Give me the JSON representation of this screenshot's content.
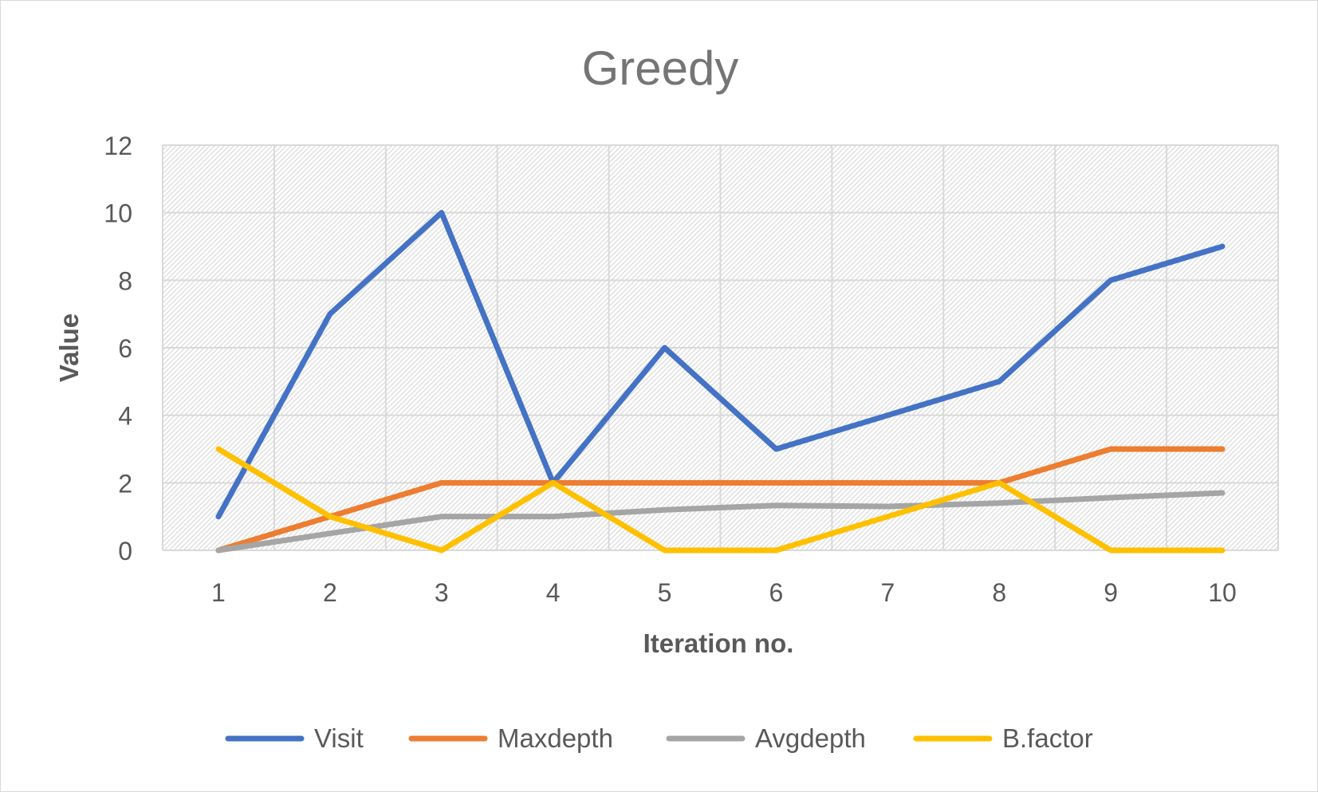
{
  "chart_data": {
    "type": "line",
    "title": "Greedy",
    "xlabel": "Iteration no.",
    "ylabel": "Value",
    "categories": [
      "1",
      "2",
      "3",
      "4",
      "5",
      "6",
      "7",
      "8",
      "9",
      "10"
    ],
    "ylim": [
      0,
      12
    ],
    "yticks": [
      0,
      2,
      4,
      6,
      8,
      10,
      12
    ],
    "grid": true,
    "legend_position": "bottom",
    "series": [
      {
        "name": "Visit",
        "color": "#4472C4",
        "values": [
          1,
          7,
          10,
          2,
          6,
          3,
          4,
          5,
          8,
          9
        ]
      },
      {
        "name": "Maxdepth",
        "color": "#ED7D31",
        "values": [
          0,
          1,
          2,
          2,
          2,
          2,
          2,
          2,
          3,
          3
        ]
      },
      {
        "name": "Avgdepth",
        "color": "#A5A5A5",
        "values": [
          0,
          0.5,
          1,
          1,
          1.2,
          1.33,
          1.3,
          1.4,
          1.56,
          1.7
        ]
      },
      {
        "name": "B.factor",
        "color": "#FFC000",
        "values": [
          3,
          1,
          0,
          2,
          0,
          0,
          1,
          2,
          0,
          0
        ]
      }
    ]
  }
}
